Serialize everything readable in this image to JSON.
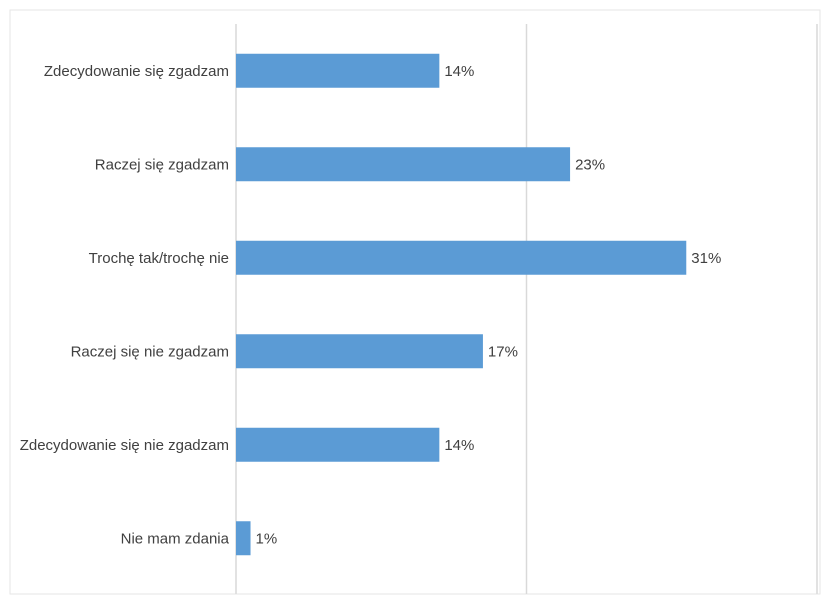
{
  "chart_data": {
    "type": "bar",
    "orientation": "horizontal",
    "categories": [
      "Zdecydowanie się zgadzam",
      "Raczej się zgadzam",
      "Trochę tak/trochę nie",
      "Raczej się nie zgadzam",
      "Zdecydowanie się nie zgadzam",
      "Nie mam zdania"
    ],
    "values": [
      14,
      23,
      31,
      17,
      14,
      1
    ],
    "value_labels": [
      "14%",
      "23%",
      "31%",
      "17%",
      "14%",
      "1%"
    ],
    "unit": "%",
    "xlim": [
      0,
      40
    ],
    "gridlines": [
      0,
      20,
      40
    ],
    "grid": true,
    "legend": "none",
    "bar_color": "#5b9bd5",
    "gridline_color": "#d9d9d9",
    "text_color": "#404040"
  }
}
